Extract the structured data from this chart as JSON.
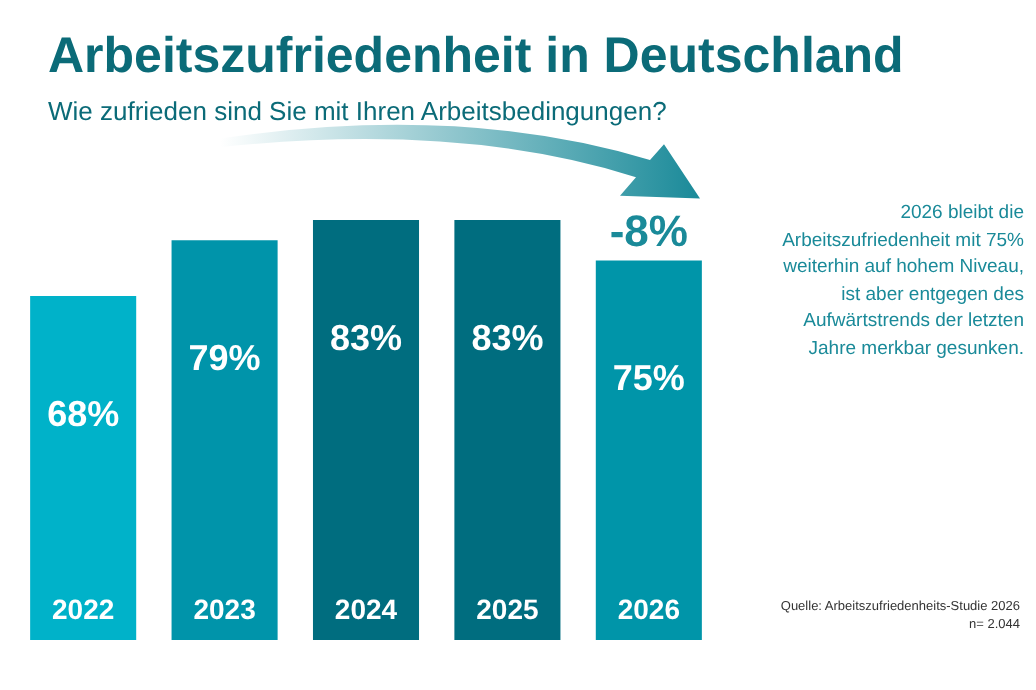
{
  "chart_data": {
    "type": "bar",
    "title": "Arbeitszufriedenheit in Deutschland",
    "subtitle": "Wie zufrieden sind Sie mit Ihren Arbeitsbedingungen?",
    "categories": [
      "2022",
      "2023",
      "2024",
      "2025",
      "2026"
    ],
    "values": [
      68,
      79,
      83,
      83,
      75
    ],
    "colors": [
      "#00b2c9",
      "#0094aa",
      "#006d7f",
      "#006d7f",
      "#0095a9"
    ],
    "value_labels": [
      "68%",
      "79%",
      "83%",
      "83%",
      "75%"
    ],
    "grid": false,
    "annotations": [
      {
        "text": "-8%",
        "x": "2026",
        "y": 75
      },
      "2026 bleibt die Arbeitszufriedenheit mit 75% weiterhin auf hohem Niveau, ist aber entgegen des Aufwärtstrends der letzten Jahre merkbar gesunken.",
      "Quelle: Arbeitszufriedenheits-Studie 2026",
      "n= 2.044"
    ]
  }
}
